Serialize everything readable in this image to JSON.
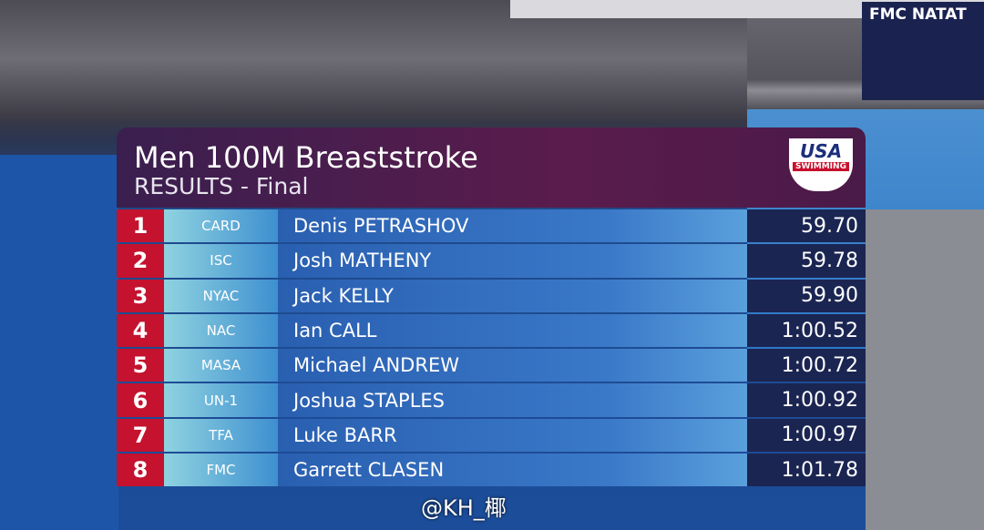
{
  "header": {
    "title": "Men 100M Breaststroke",
    "subtitle": "RESULTS - Final",
    "logo_top": "USA",
    "logo_bottom": "SWIMMING"
  },
  "venue_sign": "FMC NATAT",
  "results": [
    {
      "place": 1,
      "team": "CARD",
      "name": "Denis PETRASHOV",
      "time": "59.70"
    },
    {
      "place": 2,
      "team": "ISC",
      "name": "Josh MATHENY",
      "time": "59.78"
    },
    {
      "place": 3,
      "team": "NYAC",
      "name": "Jack KELLY",
      "time": "59.90"
    },
    {
      "place": 4,
      "team": "NAC",
      "name": "Ian CALL",
      "time": "1:00.52"
    },
    {
      "place": 5,
      "team": "MASA",
      "name": "Michael ANDREW",
      "time": "1:00.72"
    },
    {
      "place": 6,
      "team": "UN-1",
      "name": "Joshua STAPLES",
      "time": "1:00.92"
    },
    {
      "place": 7,
      "team": "TFA",
      "name": "Luke BARR",
      "time": "1:00.97"
    },
    {
      "place": 8,
      "team": "FMC",
      "name": "Garrett CLASEN",
      "time": "1:01.78"
    }
  ],
  "watermark": "@KH_椰"
}
